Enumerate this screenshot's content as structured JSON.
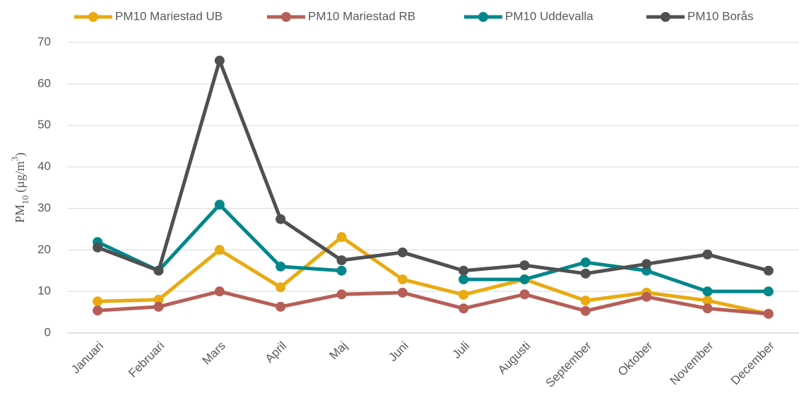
{
  "chart_data": {
    "type": "line",
    "ylabel": {
      "main": "PM",
      "sub": "10",
      "unit": "(µg/m",
      "sup": "3",
      "close": ")"
    },
    "categories": [
      "Januari",
      "Februari",
      "Mars",
      "April",
      "Maj",
      "Juni",
      "Juli",
      "Augusti",
      "September",
      "Oktober",
      "November",
      "December"
    ],
    "series": [
      {
        "name": "PM10 Mariestad UB",
        "color": "#e9aa12",
        "values": [
          7.6,
          8.0,
          20.0,
          11.0,
          23.1,
          12.9,
          9.2,
          12.9,
          7.8,
          9.7,
          7.8,
          4.6
        ]
      },
      {
        "name": "PM10 Mariestad RB",
        "color": "#b65f57",
        "values": [
          5.4,
          6.3,
          10.0,
          6.3,
          9.3,
          9.7,
          5.9,
          9.3,
          5.3,
          8.7,
          5.9,
          4.6
        ]
      },
      {
        "name": "PM10 Uddevalla",
        "color": "#00878c",
        "values": [
          21.9,
          15.0,
          30.9,
          16.0,
          15.0,
          null,
          12.9,
          12.9,
          17.0,
          15.0,
          10.0,
          10.0
        ]
      },
      {
        "name": "PM10 Borås",
        "color": "#505050",
        "values": [
          20.6,
          15.0,
          65.6,
          27.4,
          17.5,
          19.4,
          15.0,
          16.3,
          14.3,
          16.6,
          18.9,
          15.0
        ]
      }
    ],
    "ylim": [
      0,
      70
    ],
    "yticks": [
      0,
      10,
      20,
      30,
      40,
      50,
      60,
      70
    ],
    "grid": true,
    "legend": "top"
  }
}
